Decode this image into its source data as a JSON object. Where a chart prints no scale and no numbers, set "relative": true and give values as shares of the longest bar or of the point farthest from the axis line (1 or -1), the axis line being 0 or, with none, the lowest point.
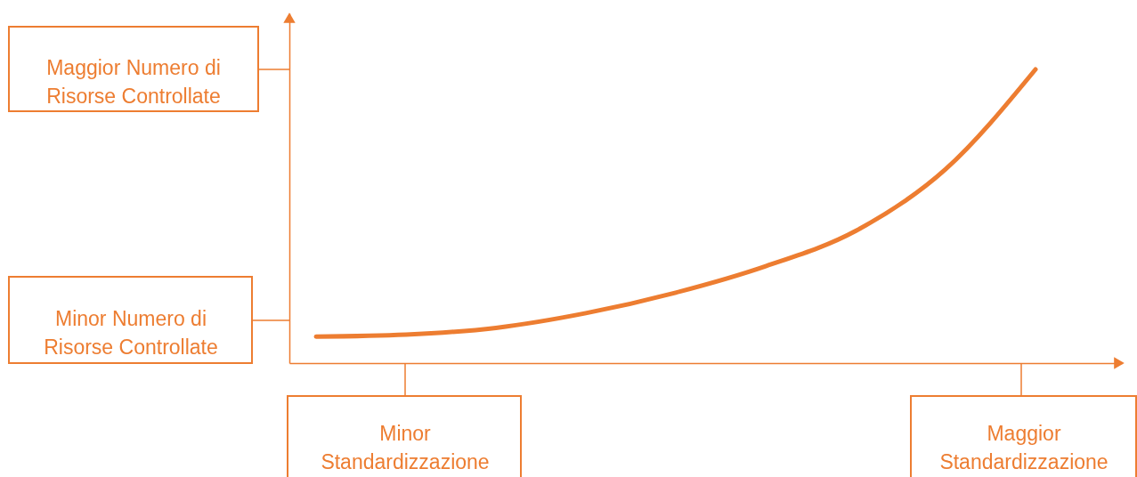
{
  "chart_data": {
    "type": "line",
    "relative": true,
    "tick_labels": false,
    "categories": [
      null,
      null,
      null,
      null,
      null,
      null,
      null,
      null,
      null
    ],
    "series": [
      {
        "color": "#ed7d31",
        "values": [
          0.09,
          0.097,
          0.12,
          0.17,
          0.24,
          0.33,
          0.45,
          0.66,
          1.0
        ]
      }
    ],
    "annotations": [
      "Maggior Numero di\nRisorse Controllate",
      "Minor Numero di\nRisorse Controllate",
      "Minor\nStandardizzazione",
      "Maggior\nStandardizzazione"
    ]
  }
}
